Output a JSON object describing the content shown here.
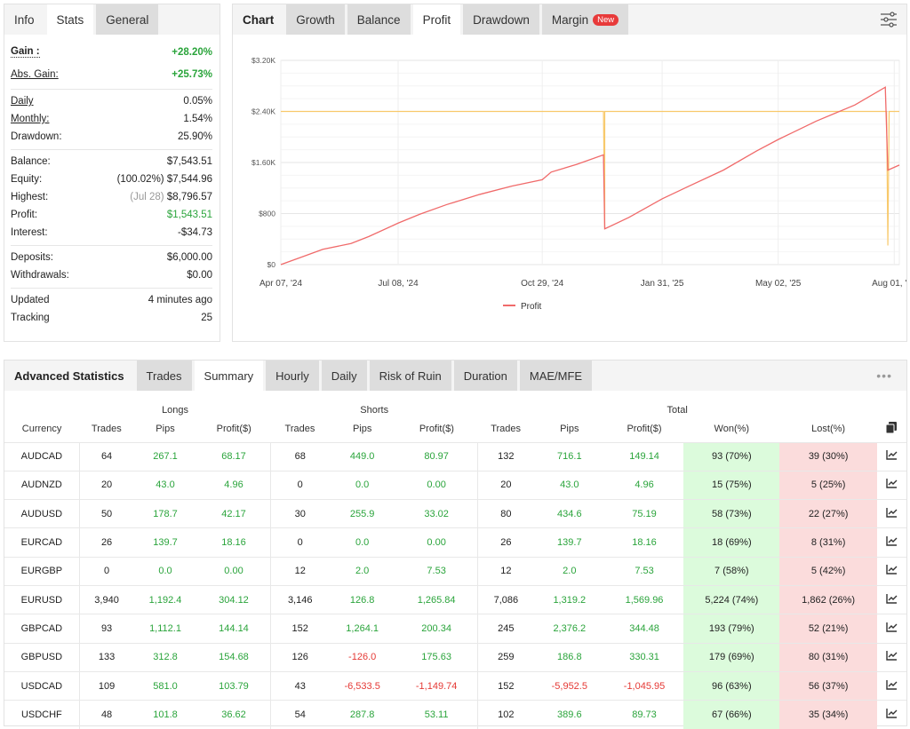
{
  "left": {
    "tabs": [
      "Info",
      "Stats",
      "General"
    ],
    "active": "Stats",
    "groups": [
      [
        {
          "label": "Gain :",
          "value": "+28.20%",
          "style": "gain"
        },
        {
          "label": "Abs. Gain:",
          "value": "+25.73%",
          "style": "abs"
        }
      ],
      [
        {
          "label": "Daily",
          "value": "0.05%",
          "style": "u"
        },
        {
          "label": "Monthly:",
          "value": "1.54%",
          "style": "u"
        },
        {
          "label": "Drawdown:",
          "value": "25.90%"
        }
      ],
      [
        {
          "label": "Balance:",
          "value": "$7,543.51"
        },
        {
          "label": "Equity:",
          "note": "(100.02%)",
          "value": "$7,544.96"
        },
        {
          "label": "Highest:",
          "note": "(Jul 28)",
          "value": "$8,796.57",
          "noteMuted": true
        },
        {
          "label": "Profit:",
          "value": "$1,543.51",
          "style": "green"
        },
        {
          "label": "Interest:",
          "value": "-$34.73"
        }
      ],
      [
        {
          "label": "Deposits:",
          "value": "$6,000.00"
        },
        {
          "label": "Withdrawals:",
          "value": "$0.00"
        }
      ],
      [
        {
          "label": "Updated",
          "value": "4 minutes ago"
        },
        {
          "label": "Tracking",
          "value": "25"
        }
      ]
    ]
  },
  "right": {
    "title": "Chart",
    "tabs": [
      "Growth",
      "Balance",
      "Profit",
      "Drawdown",
      "Margin"
    ],
    "active": "Profit",
    "new_badge": "New",
    "icon": "sliders-icon"
  },
  "chart_data": {
    "type": "line",
    "ylim": [
      0,
      3200
    ],
    "xlim": [
      "2024-04-07",
      "2025-08-05"
    ],
    "yticks": [
      "$0",
      "$800",
      "$1.60K",
      "$2.40K",
      "$3.20K"
    ],
    "ytick_values": [
      0,
      800,
      1600,
      2400,
      3200
    ],
    "xticks": [
      "Apr 07, '24",
      "Jul 08, '24",
      "Oct 29, '24",
      "Jan 31, '25",
      "May 02, '25",
      "Aug 01, '25"
    ],
    "xtick_dates": [
      "2024-04-07",
      "2024-07-08",
      "2024-10-29",
      "2025-01-31",
      "2025-05-02",
      "2025-08-01"
    ],
    "grid": true,
    "legend": "bottom",
    "series": [
      {
        "name": "Profit",
        "color": "#f06a6a",
        "points": [
          [
            "2024-04-07",
            0
          ],
          [
            "2024-04-25",
            130
          ],
          [
            "2024-05-10",
            240
          ],
          [
            "2024-06-01",
            330
          ],
          [
            "2024-06-15",
            440
          ],
          [
            "2024-07-08",
            650
          ],
          [
            "2024-07-25",
            790
          ],
          [
            "2024-08-15",
            940
          ],
          [
            "2024-09-10",
            1100
          ],
          [
            "2024-10-05",
            1230
          ],
          [
            "2024-10-29",
            1330
          ],
          [
            "2024-11-05",
            1450
          ],
          [
            "2024-11-25",
            1570
          ],
          [
            "2024-12-16",
            1720
          ],
          [
            "2024-12-17",
            560
          ],
          [
            "2025-01-05",
            740
          ],
          [
            "2025-01-31",
            1030
          ],
          [
            "2025-02-20",
            1220
          ],
          [
            "2025-03-20",
            1480
          ],
          [
            "2025-04-15",
            1780
          ],
          [
            "2025-05-02",
            1960
          ],
          [
            "2025-06-01",
            2250
          ],
          [
            "2025-07-01",
            2500
          ],
          [
            "2025-07-25",
            2780
          ],
          [
            "2025-07-27",
            1480
          ],
          [
            "2025-08-05",
            1560
          ]
        ]
      },
      {
        "color": "#f8c96b",
        "points": [
          [
            "2024-04-07",
            2400
          ],
          [
            "2024-12-16",
            2400
          ],
          [
            "2024-12-17",
            560
          ],
          [
            "2024-12-17",
            2400
          ],
          [
            "2025-07-26",
            2400
          ],
          [
            "2025-07-27",
            300
          ],
          [
            "2025-07-28",
            2400
          ],
          [
            "2025-08-05",
            2400
          ]
        ]
      }
    ]
  },
  "bottom": {
    "title": "Advanced Statistics",
    "tabs": [
      "Trades",
      "Summary",
      "Hourly",
      "Daily",
      "Risk of Ruin",
      "Duration",
      "MAE/MFE"
    ],
    "active": "Summary",
    "more": "•••",
    "groups": [
      "Longs",
      "Shorts",
      "Total"
    ],
    "headers": [
      "Currency",
      "Trades",
      "Pips",
      "Profit($)",
      "Trades",
      "Pips",
      "Profit($)",
      "Trades",
      "Pips",
      "Profit($)",
      "Won(%)",
      "Lost(%)"
    ],
    "rows": [
      [
        "AUDCAD",
        "64",
        "267.1",
        "68.17",
        "68",
        "449.0",
        "80.97",
        "132",
        "716.1",
        "149.14",
        "93 (70%)",
        "39 (30%)"
      ],
      [
        "AUDNZD",
        "20",
        "43.0",
        "4.96",
        "0",
        "0.0",
        "0.00",
        "20",
        "43.0",
        "4.96",
        "15 (75%)",
        "5 (25%)"
      ],
      [
        "AUDUSD",
        "50",
        "178.7",
        "42.17",
        "30",
        "255.9",
        "33.02",
        "80",
        "434.6",
        "75.19",
        "58 (73%)",
        "22 (27%)"
      ],
      [
        "EURCAD",
        "26",
        "139.7",
        "18.16",
        "0",
        "0.0",
        "0.00",
        "26",
        "139.7",
        "18.16",
        "18 (69%)",
        "8 (31%)"
      ],
      [
        "EURGBP",
        "0",
        "0.0",
        "0.00",
        "12",
        "2.0",
        "7.53",
        "12",
        "2.0",
        "7.53",
        "7 (58%)",
        "5 (42%)"
      ],
      [
        "EURUSD",
        "3,940",
        "1,192.4",
        "304.12",
        "3,146",
        "126.8",
        "1,265.84",
        "7,086",
        "1,319.2",
        "1,569.96",
        "5,224 (74%)",
        "1,862 (26%)"
      ],
      [
        "GBPCAD",
        "93",
        "1,112.1",
        "144.14",
        "152",
        "1,264.1",
        "200.34",
        "245",
        "2,376.2",
        "344.48",
        "193 (79%)",
        "52 (21%)"
      ],
      [
        "GBPUSD",
        "133",
        "312.8",
        "154.68",
        "126",
        "-126.0",
        "175.63",
        "259",
        "186.8",
        "330.31",
        "179 (69%)",
        "80 (31%)"
      ],
      [
        "USDCAD",
        "109",
        "581.0",
        "103.79",
        "43",
        "-6,533.5",
        "-1,149.74",
        "152",
        "-5,952.5",
        "-1,045.95",
        "96 (63%)",
        "56 (37%)"
      ],
      [
        "USDCHF",
        "48",
        "101.8",
        "36.62",
        "54",
        "287.8",
        "53.11",
        "102",
        "389.6",
        "89.73",
        "67 (66%)",
        "35 (34%)"
      ]
    ]
  }
}
